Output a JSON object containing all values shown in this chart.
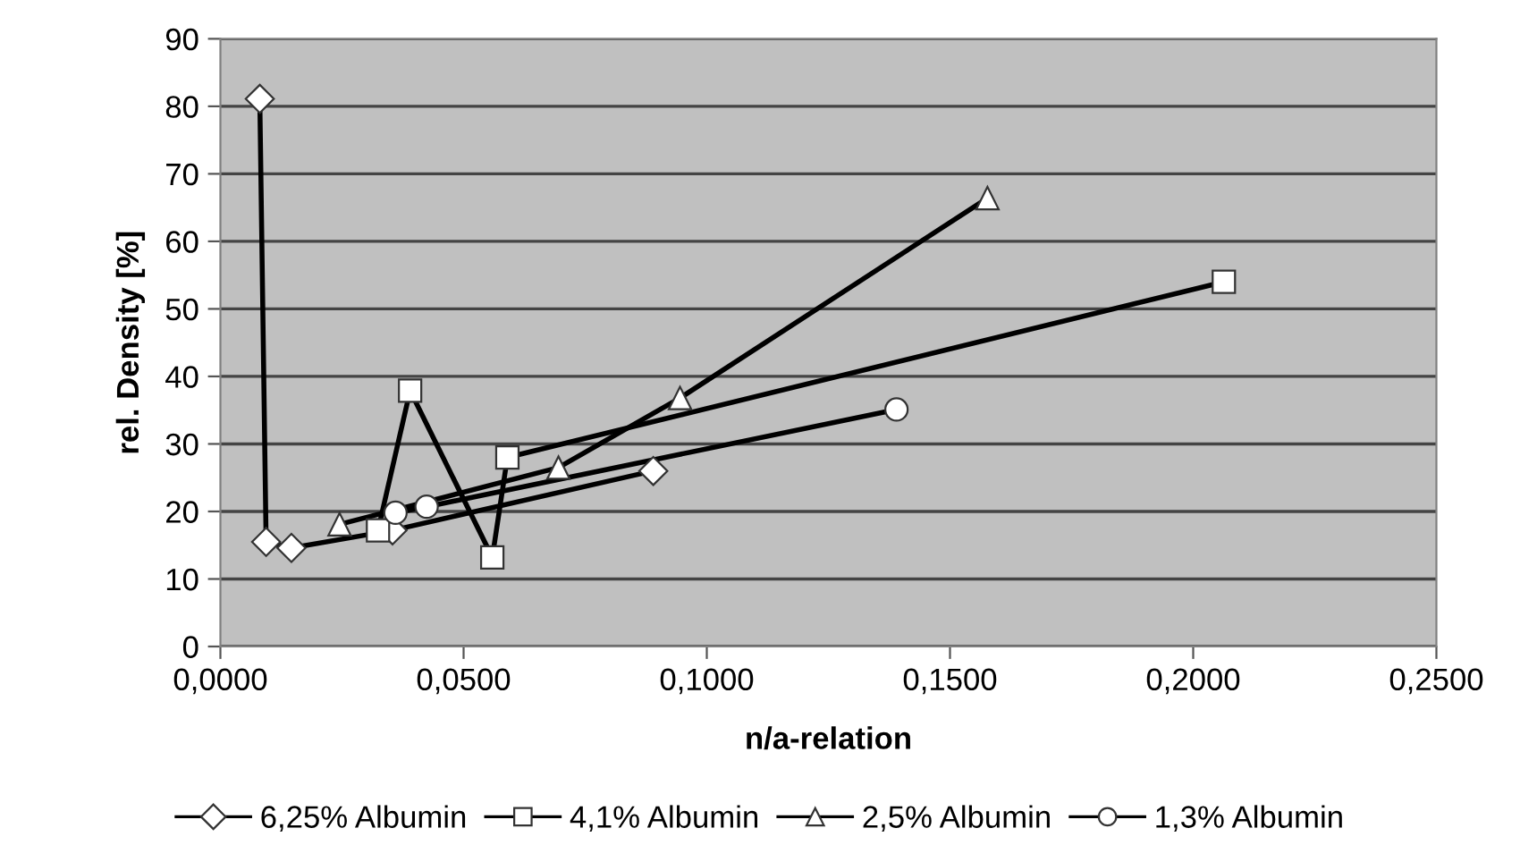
{
  "chart_data": {
    "type": "line",
    "xlabel": "n/a-relation",
    "ylabel": "rel. Density [%]",
    "xlim": [
      0,
      0.25
    ],
    "xticks": [
      {
        "value": 0,
        "label": "0,0000"
      },
      {
        "value": 0.05,
        "label": "0,0500"
      },
      {
        "value": 0.1,
        "label": "0,1000"
      },
      {
        "value": 0.15,
        "label": "0,1500"
      },
      {
        "value": 0.2,
        "label": "0,2000"
      },
      {
        "value": 0.25,
        "label": "0,2500"
      }
    ],
    "ylim": [
      0,
      90
    ],
    "yticks": [
      0,
      10,
      20,
      30,
      40,
      50,
      60,
      70,
      80,
      90
    ],
    "grid": "y",
    "legend": "bottom",
    "line_style": "solid",
    "series": [
      {
        "name": "6,25% Albumin",
        "color": "#000000",
        "marker": "diamond",
        "x": [
          0.0081,
          0.0094,
          0.0146,
          0.0354,
          0.089
        ],
        "values": [
          81.1,
          15.5,
          14.6,
          17.2,
          26.0
        ]
      },
      {
        "name": "4,1% Albumin",
        "color": "#000000",
        "marker": "square",
        "x": [
          0.0324,
          0.039,
          0.0559,
          0.059,
          0.2063
        ],
        "values": [
          17.2,
          37.9,
          13.2,
          28.0,
          54.0
        ]
      },
      {
        "name": "2,5% Albumin",
        "color": "#000000",
        "marker": "triangle",
        "x": [
          0.0245,
          0.0695,
          0.0945,
          0.1577
        ],
        "values": [
          18.1,
          26.5,
          36.8,
          66.4
        ]
      },
      {
        "name": "1,3% Albumin",
        "color": "#000000",
        "marker": "circle",
        "x": [
          0.036,
          0.0424,
          0.139
        ],
        "values": [
          19.8,
          20.7,
          35.1
        ]
      }
    ]
  }
}
